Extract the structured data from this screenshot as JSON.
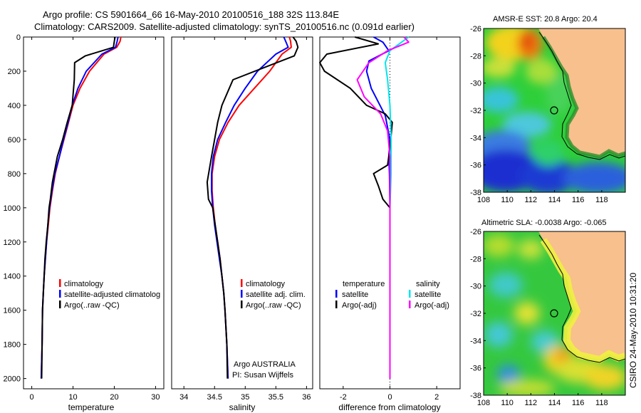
{
  "figure": {
    "title_line1": "Argo profile: CS 5901664_66 16-May-2010 20100516_188 32S 113.84E",
    "title_line2": "Climatology: CARS2009. Satellite-adjusted climatology: synTS_20100516.nc (0.091d earlier)",
    "credit": "CSIRO 24-May-2010 10:31:20",
    "colors": {
      "climatology": "#ff0000",
      "satellite": "#0000ff",
      "argo": "#000000",
      "salinity_satellite": "#00e5ee",
      "salinity_argo": "#ff00ff",
      "zero_line": "#000000"
    }
  },
  "chart_data": [
    {
      "type": "line",
      "name": "temperature",
      "xlabel": "temperature",
      "xlim": [
        -2,
        32
      ],
      "ylim": [
        2060,
        0
      ],
      "xticks": [
        0,
        10,
        20,
        30
      ],
      "yticks": [
        0,
        200,
        400,
        600,
        800,
        1000,
        1200,
        1400,
        1600,
        1800,
        2000
      ],
      "legend": [
        "climatology",
        "satellite-adjusted climatolog",
        "Argo(..raw -QC)"
      ],
      "series": [
        {
          "name": "climatology",
          "color": "#ff0000",
          "x": [
            21.6,
            21.4,
            20.6,
            17.5,
            14,
            11.7,
            10,
            8.9,
            7.8,
            6.7,
            5.7,
            5,
            4.4,
            4,
            3.6,
            3.3,
            3,
            2.8,
            2.6,
            2.5,
            2.3
          ],
          "y": [
            0,
            25,
            60,
            100,
            200,
            300,
            400,
            500,
            600,
            700,
            800,
            900,
            1000,
            1100,
            1200,
            1300,
            1400,
            1500,
            1600,
            1800,
            2000
          ]
        },
        {
          "name": "satellite",
          "color": "#0000ff",
          "x": [
            20.9,
            20.7,
            20.3,
            17,
            13.2,
            11.2,
            9.8,
            8.8,
            7.7,
            6.7,
            5.6,
            4.9,
            4.3,
            3.9,
            3.6,
            3.3,
            3,
            2.8,
            2.6,
            2.5,
            2.3
          ],
          "y": [
            0,
            25,
            60,
            100,
            200,
            300,
            400,
            500,
            600,
            700,
            800,
            900,
            1000,
            1100,
            1200,
            1300,
            1400,
            1500,
            1600,
            1800,
            2000
          ]
        },
        {
          "name": "Argo",
          "color": "#000000",
          "x": [
            20.2,
            20,
            19.8,
            13,
            10.4,
            10.3,
            9.8,
            8.6,
            7.5,
            6.2,
            5,
            4.5,
            4.2,
            3.9,
            3.5,
            3.2,
            3,
            2.8,
            2.6,
            2.5,
            2.4
          ],
          "y": [
            0,
            25,
            60,
            110,
            150,
            250,
            400,
            500,
            600,
            700,
            850,
            950,
            1000,
            1100,
            1200,
            1300,
            1400,
            1500,
            1600,
            1800,
            2000
          ]
        }
      ]
    },
    {
      "type": "line",
      "name": "salinity",
      "xlabel": "salinity",
      "xlim": [
        33.8,
        36.1
      ],
      "ylim": [
        2060,
        0
      ],
      "xticks": [
        34,
        34.5,
        35,
        35.5,
        36
      ],
      "legend": [
        "climatology",
        "satellite adj. clim.",
        "Argo(..raw -QC)"
      ],
      "annotation_line1": "Argo AUSTRALIA",
      "annotation_line2": "PI: Susan Wijffels",
      "series": [
        {
          "name": "climatology",
          "color": "#ff0000",
          "x": [
            35.72,
            35.74,
            35.75,
            35.6,
            35.4,
            35.15,
            34.9,
            34.72,
            34.58,
            34.5,
            34.46,
            34.46,
            34.48,
            34.51,
            34.55,
            34.59,
            34.62,
            34.65,
            34.67,
            34.7,
            34.72
          ],
          "y": [
            0,
            25,
            60,
            100,
            200,
            300,
            400,
            500,
            600,
            700,
            800,
            900,
            1000,
            1100,
            1200,
            1300,
            1400,
            1500,
            1600,
            1800,
            2000
          ]
        },
        {
          "name": "satellite",
          "color": "#0000ff",
          "x": [
            35.63,
            35.66,
            35.7,
            35.5,
            35.2,
            35.0,
            34.82,
            34.68,
            34.55,
            34.48,
            34.45,
            34.45,
            34.47,
            34.5,
            34.54,
            34.58,
            34.62,
            34.65,
            34.67,
            34.7,
            34.72
          ],
          "y": [
            0,
            25,
            60,
            100,
            200,
            300,
            400,
            500,
            600,
            700,
            800,
            900,
            1000,
            1100,
            1200,
            1300,
            1400,
            1500,
            1600,
            1800,
            2000
          ]
        },
        {
          "name": "Argo",
          "color": "#000000",
          "x": [
            35.78,
            35.83,
            35.86,
            35.8,
            35.3,
            34.8,
            34.62,
            34.55,
            34.5,
            34.45,
            34.38,
            34.4,
            34.47,
            34.51,
            34.55,
            34.59,
            34.62,
            34.65,
            34.67,
            34.7,
            34.71
          ],
          "y": [
            0,
            25,
            60,
            110,
            180,
            250,
            400,
            500,
            600,
            700,
            850,
            950,
            1000,
            1100,
            1200,
            1300,
            1400,
            1500,
            1600,
            1800,
            2000
          ]
        }
      ]
    },
    {
      "type": "line",
      "name": "difference",
      "xlabel": "difference from climatology",
      "xlim": [
        -3,
        3
      ],
      "ylim": [
        2060,
        0
      ],
      "xticks": [
        -2,
        0,
        2
      ],
      "legend_temperature_header": "temperature",
      "legend_salinity_header": "salinity",
      "legend": [
        "satellite",
        "Argo(-adj)",
        "satellite",
        "Argo(-adj)"
      ],
      "series": [
        {
          "name": "temperature satellite",
          "color": "#0000ff",
          "x": [
            -0.7,
            -0.3,
            -0.05,
            -0.9,
            -1,
            -0.8,
            -0.2,
            0,
            -0.05,
            -0.02,
            0,
            0,
            0
          ],
          "y": [
            0,
            30,
            80,
            140,
            200,
            300,
            460,
            600,
            700,
            800,
            1000,
            1500,
            2000
          ]
        },
        {
          "name": "temperature Argo",
          "color": "#000000",
          "x": [
            -1.5,
            -0.5,
            -2.7,
            -3,
            -2.8,
            -1.7,
            -1,
            -0.2,
            0.1,
            0,
            -0.1,
            -0.7,
            -0.5,
            -0.3,
            0,
            0,
            0
          ],
          "y": [
            0,
            40,
            100,
            150,
            200,
            300,
            400,
            450,
            500,
            650,
            750,
            800,
            870,
            950,
            1000,
            1500,
            2000
          ]
        },
        {
          "name": "salinity satellite",
          "color": "#00e5ee",
          "x": [
            0.8,
            0.5,
            0,
            -0.2,
            -0.1,
            0,
            0.05,
            0.05,
            0,
            0,
            0
          ],
          "y": [
            0,
            30,
            80,
            150,
            250,
            400,
            600,
            800,
            1000,
            1500,
            2000
          ]
        },
        {
          "name": "salinity Argo",
          "color": "#ff00ff",
          "x": [
            0.6,
            0.8,
            -0.1,
            -0.9,
            -1.4,
            -1.1,
            -0.4,
            -0.1,
            0,
            0,
            0
          ],
          "y": [
            0,
            30,
            80,
            150,
            250,
            350,
            450,
            550,
            700,
            1000,
            2000
          ]
        }
      ]
    },
    {
      "type": "heatmap",
      "name": "sst-map",
      "title": "AMSR-E SST: 20.8  Argo: 20.4",
      "xlim": [
        108,
        120
      ],
      "ylim": [
        -38,
        -26
      ],
      "xticks": [
        108,
        110,
        112,
        114,
        116,
        118
      ],
      "yticks": [
        -26,
        -28,
        -30,
        -32,
        -34,
        -36,
        -38
      ],
      "marker": [
        113.84,
        -32
      ]
    },
    {
      "type": "heatmap",
      "name": "sla-map",
      "title": "Altimetric SLA: -0.0038  Argo: -0.065",
      "xlim": [
        108,
        120
      ],
      "ylim": [
        -38,
        -26
      ],
      "xticks": [
        108,
        110,
        112,
        114,
        116,
        118
      ],
      "yticks": [
        -26,
        -28,
        -30,
        -32,
        -34,
        -36,
        -38
      ],
      "marker": [
        113.84,
        -32
      ]
    }
  ]
}
